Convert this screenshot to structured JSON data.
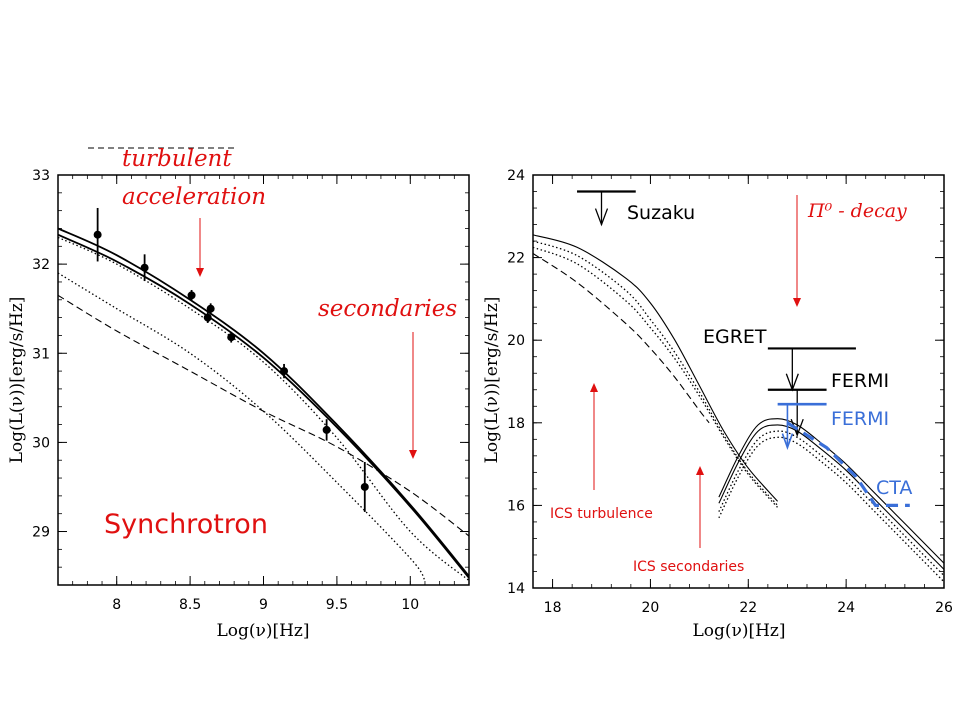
{
  "colors": {
    "red": "#e01010",
    "blue": "#3a6fd8",
    "black": "#000000"
  },
  "chart_data": [
    {
      "type": "line",
      "panel": "left",
      "xlabel": "Log(ν)[Hz]",
      "ylabel": "Log(L(ν))[erg/s/Hz]",
      "xlim": [
        7.6,
        10.4
      ],
      "ylim": [
        28.4,
        33
      ],
      "xticks": [
        "8",
        "8.5",
        "9",
        "9.5",
        "10"
      ],
      "xtick_values": [
        8,
        8.5,
        9,
        9.5,
        10
      ],
      "yticks": [
        "29",
        "30",
        "31",
        "32",
        "33"
      ],
      "ytick_values": [
        29,
        30,
        31,
        32,
        33
      ],
      "series": [
        {
          "name": "total-thick-a",
          "style": "solid-thick",
          "x": [
            7.6,
            8.0,
            8.5,
            9.0,
            9.5,
            10.0,
            10.4
          ],
          "y": [
            32.4,
            32.1,
            31.6,
            31.0,
            30.2,
            29.3,
            28.5
          ]
        },
        {
          "name": "total-thick-b",
          "style": "solid-thick",
          "x": [
            7.6,
            8.0,
            8.5,
            9.0,
            9.5,
            10.0,
            10.4
          ],
          "y": [
            32.33,
            32.03,
            31.55,
            30.95,
            30.17,
            29.28,
            28.48
          ]
        },
        {
          "name": "dotted-upper",
          "style": "dotted",
          "x": [
            7.6,
            8.0,
            8.5,
            9.0,
            9.5,
            10.0,
            10.4
          ],
          "y": [
            32.3,
            32.0,
            31.5,
            30.9,
            30.05,
            29.0,
            28.45
          ]
        },
        {
          "name": "dotted-lower",
          "style": "dotted",
          "x": [
            7.6,
            8.0,
            8.5,
            9.0,
            9.5,
            10.0,
            10.1
          ],
          "y": [
            31.9,
            31.5,
            31.0,
            30.35,
            29.55,
            28.7,
            28.45
          ]
        },
        {
          "name": "dashed-secondaries",
          "style": "dashed",
          "x": [
            7.6,
            8.0,
            8.5,
            9.0,
            9.5,
            10.0,
            10.4
          ],
          "y": [
            31.65,
            31.25,
            30.8,
            30.35,
            29.95,
            29.45,
            28.95
          ]
        }
      ],
      "points": {
        "x": [
          7.87,
          8.19,
          8.51,
          8.62,
          8.64,
          8.78,
          9.14,
          9.43,
          9.69
        ],
        "y": [
          32.33,
          31.96,
          31.65,
          31.4,
          31.5,
          31.18,
          30.8,
          30.14,
          29.5
        ],
        "err_low": [
          0.3,
          0.15,
          0.06,
          0.06,
          0.06,
          0.06,
          0.08,
          0.12,
          0.28
        ],
        "err_high": [
          0.3,
          0.15,
          0.06,
          0.06,
          0.06,
          0.06,
          0.08,
          0.12,
          0.28
        ]
      },
      "annotations": {
        "turbulent": "turbulent",
        "acceleration": "acceleration",
        "secondaries": "secondaries",
        "synchrotron": "Synchrotron"
      }
    },
    {
      "type": "line",
      "panel": "right",
      "xlabel": "Log(ν)[Hz]",
      "ylabel": "Log(L(ν))[erg/s/Hz]",
      "xlim": [
        17.6,
        26
      ],
      "ylim": [
        14,
        24
      ],
      "xticks": [
        "18",
        "20",
        "22",
        "24",
        "26"
      ],
      "xtick_values": [
        18,
        20,
        22,
        24,
        26
      ],
      "yticks": [
        "14",
        "16",
        "18",
        "20",
        "22",
        "24"
      ],
      "ytick_values": [
        14,
        16,
        18,
        20,
        22,
        24
      ],
      "series": [
        {
          "name": "ics-solid",
          "style": "solid",
          "x": [
            17.6,
            18.5,
            19.5,
            20.0,
            20.5,
            21.0,
            21.5,
            22.0,
            22.6
          ],
          "y": [
            22.55,
            22.25,
            21.5,
            20.9,
            20.0,
            18.9,
            17.8,
            16.9,
            16.1
          ]
        },
        {
          "name": "ics-dotted-1",
          "style": "dotted",
          "x": [
            17.6,
            18.5,
            19.5,
            20.0,
            20.5,
            21.0,
            21.5,
            22.0,
            22.6
          ],
          "y": [
            22.4,
            22.05,
            21.2,
            20.5,
            19.7,
            18.75,
            17.7,
            16.8,
            16.0
          ]
        },
        {
          "name": "ics-dotted-2",
          "style": "dotted",
          "x": [
            17.6,
            18.5,
            19.5,
            20.0,
            20.5,
            21.0,
            21.5,
            22.0,
            22.6
          ],
          "y": [
            22.25,
            21.85,
            20.95,
            20.3,
            19.55,
            18.65,
            17.65,
            16.75,
            15.95
          ]
        },
        {
          "name": "ics-dashed",
          "style": "dashed",
          "x": [
            17.6,
            18.5,
            19.5,
            20.0,
            20.5,
            21.0,
            21.2
          ],
          "y": [
            22.1,
            21.4,
            20.4,
            19.8,
            19.1,
            18.3,
            18.0
          ]
        },
        {
          "name": "pi0-solid-1",
          "style": "solid",
          "x": [
            21.4,
            21.8,
            22.2,
            22.6,
            23.0,
            23.5,
            24.0,
            24.5,
            25.0,
            25.5,
            26.0
          ],
          "y": [
            16.2,
            17.2,
            17.95,
            18.1,
            17.95,
            17.5,
            17.0,
            16.4,
            15.8,
            15.2,
            14.6
          ]
        },
        {
          "name": "pi0-solid-2",
          "style": "solid",
          "x": [
            21.4,
            21.8,
            22.2,
            22.6,
            23.0,
            23.5,
            24.0,
            24.5,
            25.0,
            25.5,
            26.0
          ],
          "y": [
            16.05,
            17.05,
            17.8,
            17.95,
            17.8,
            17.35,
            16.85,
            16.25,
            15.65,
            15.05,
            14.45
          ]
        },
        {
          "name": "pi0-dotted-1",
          "style": "dotted",
          "x": [
            21.4,
            21.8,
            22.2,
            22.6,
            23.0,
            23.5,
            24.0,
            24.5,
            25.0,
            25.5,
            26.0
          ],
          "y": [
            15.85,
            16.85,
            17.6,
            17.8,
            17.65,
            17.2,
            16.7,
            16.1,
            15.5,
            14.9,
            14.3
          ]
        },
        {
          "name": "pi0-dotted-2",
          "style": "dotted",
          "x": [
            21.4,
            21.8,
            22.2,
            22.6,
            23.0,
            23.5,
            24.0,
            24.5,
            25.0,
            25.5,
            26.0
          ],
          "y": [
            15.7,
            16.7,
            17.45,
            17.65,
            17.5,
            17.05,
            16.55,
            15.95,
            15.35,
            14.75,
            14.15
          ]
        }
      ],
      "upper_limits": [
        {
          "label": "Suzaku",
          "x1": 18.5,
          "x2": 19.7,
          "y": 23.6,
          "arrow_x": 19.0,
          "arrow_to": 22.8
        },
        {
          "label": "EGRET",
          "x1": 22.4,
          "x2": 24.2,
          "y": 19.8,
          "arrow_x": 22.9,
          "arrow_to": 18.8
        },
        {
          "label": "FERMI",
          "x1": 22.4,
          "x2": 23.6,
          "y": 18.8,
          "arrow_x": 23.0,
          "arrow_to": 17.7
        }
      ],
      "fermi_blue": {
        "label": "FERMI",
        "x1": 22.6,
        "x2": 23.6,
        "y": 18.45,
        "arrow_x": 22.8,
        "arrow_to": 17.4
      },
      "cta": {
        "label": "CTA",
        "x": [
          22.8,
          23.6,
          24.2,
          24.6,
          25.3
        ],
        "y": [
          18.0,
          17.4,
          16.7,
          16.0,
          16.0
        ]
      },
      "annotations": {
        "pi0": "Π⁰ - decay",
        "ics_turbulence": "ICS turbulence",
        "ics_secondaries": "ICS secondaries"
      }
    }
  ]
}
